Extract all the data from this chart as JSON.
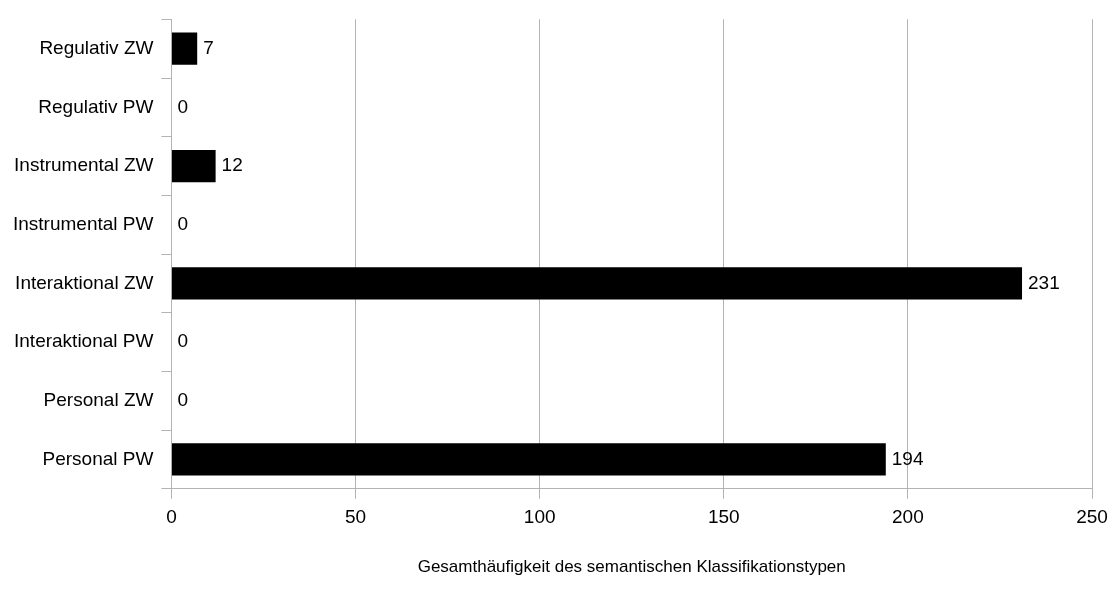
{
  "chart_data": {
    "type": "bar",
    "orientation": "horizontal",
    "xlabel": "Gesamthäufigkeit des semantischen Klassifikationstypen",
    "categories": [
      "Regulativ ZW",
      "Regulativ PW",
      "Instrumental ZW",
      "Instrumental PW",
      "Interaktional ZW",
      "Interaktional PW",
      "Personal ZW",
      "Personal PW"
    ],
    "values": [
      7,
      0,
      12,
      0,
      231,
      0,
      0,
      194
    ],
    "color": "#000000",
    "xlim": [
      0,
      250
    ],
    "xticks": [
      0,
      50,
      100,
      150,
      200,
      250
    ],
    "grid": "x",
    "legend": false,
    "data_labels": true
  }
}
